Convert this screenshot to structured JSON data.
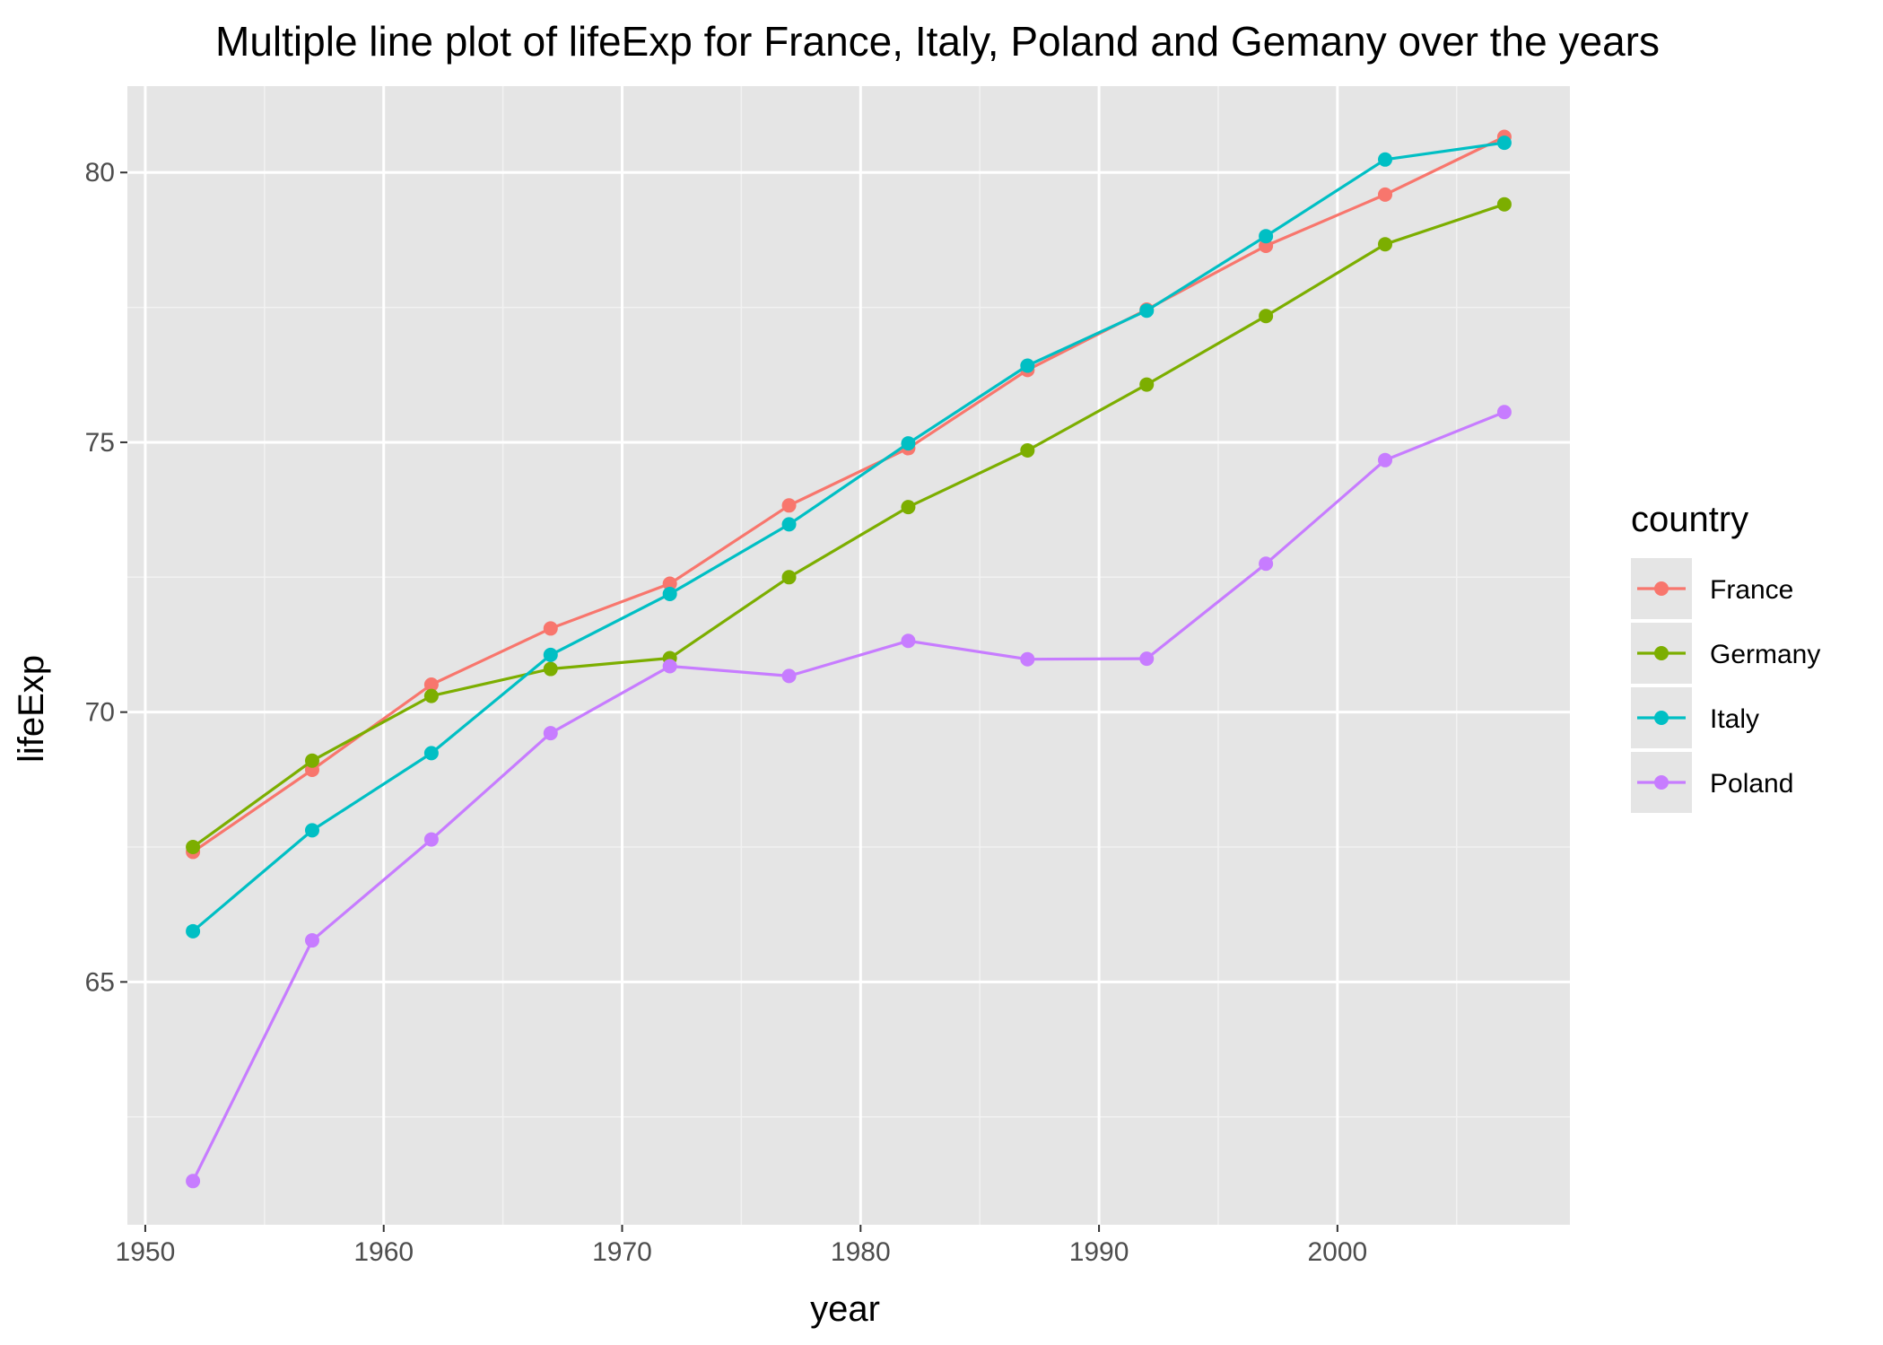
{
  "chart_data": {
    "type": "line",
    "title": "Multiple line plot of lifeExp for France, Italy, Poland and Gemany over the years",
    "xlabel": "year",
    "ylabel": "lifeExp",
    "xlim": [
      1949.25,
      2009.75
    ],
    "ylim": [
      60.5,
      81.6
    ],
    "x_ticks": [
      1950,
      1960,
      1970,
      1980,
      1990,
      2000
    ],
    "y_ticks": [
      65,
      70,
      75,
      80
    ],
    "grid": true,
    "background": "#e5e5e5",
    "legend": {
      "title": "country",
      "position": "right"
    },
    "x": [
      1952,
      1957,
      1962,
      1967,
      1972,
      1977,
      1982,
      1987,
      1992,
      1997,
      2002,
      2007
    ],
    "series": [
      {
        "name": "France",
        "color": "#f8766d",
        "values": [
          67.41,
          68.93,
          70.51,
          71.55,
          72.38,
          73.83,
          74.89,
          76.34,
          77.46,
          78.64,
          79.59,
          80.66
        ]
      },
      {
        "name": "Germany",
        "color": "#7cae00",
        "values": [
          67.5,
          69.1,
          70.3,
          70.8,
          71.0,
          72.5,
          73.8,
          74.85,
          76.07,
          77.34,
          78.67,
          79.41
        ]
      },
      {
        "name": "Italy",
        "color": "#00bfc4",
        "values": [
          65.94,
          67.81,
          69.24,
          71.06,
          72.19,
          73.48,
          74.98,
          76.42,
          77.44,
          78.82,
          80.24,
          80.55
        ]
      },
      {
        "name": "Poland",
        "color": "#c77cff",
        "values": [
          61.31,
          65.77,
          67.64,
          69.61,
          70.85,
          70.67,
          71.32,
          70.98,
          70.99,
          72.75,
          74.67,
          75.56
        ]
      }
    ]
  }
}
